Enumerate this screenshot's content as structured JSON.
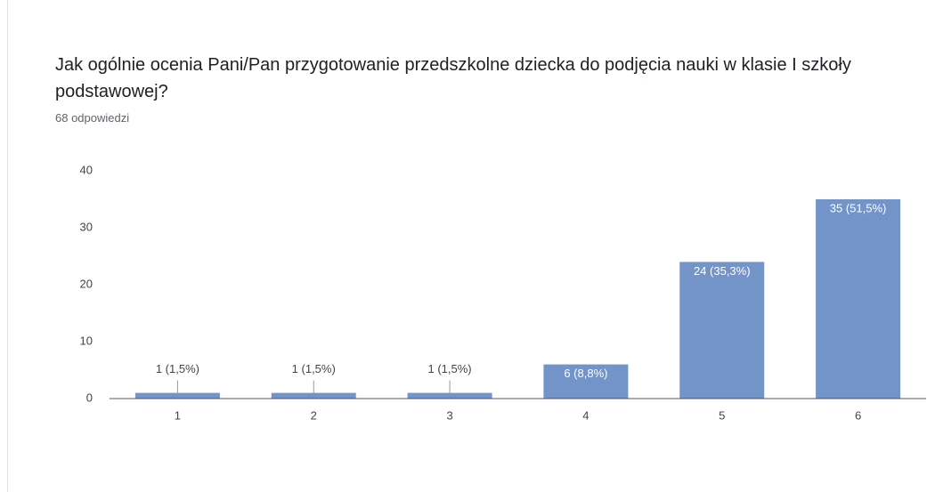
{
  "chart_data": {
    "type": "bar",
    "title": "Jak ogólnie ocenia Pani/Pan przygotowanie przedszkolne dziecka do podjęcia nauki w klasie I szkoły podstawowej?",
    "subtitle": "68 odpowiedzi",
    "categories": [
      "1",
      "2",
      "3",
      "4",
      "5",
      "6"
    ],
    "values": [
      1,
      1,
      1,
      6,
      24,
      35
    ],
    "value_labels": [
      "1 (1,5%)",
      "1 (1,5%)",
      "1 (1,5%)",
      "6 (8,8%)",
      "24 (35,3%)",
      "35 (51,5%)"
    ],
    "color": "#7394c8",
    "ylim": [
      0,
      40
    ],
    "yticks": [
      0,
      10,
      20,
      30,
      40
    ],
    "grid": false
  }
}
